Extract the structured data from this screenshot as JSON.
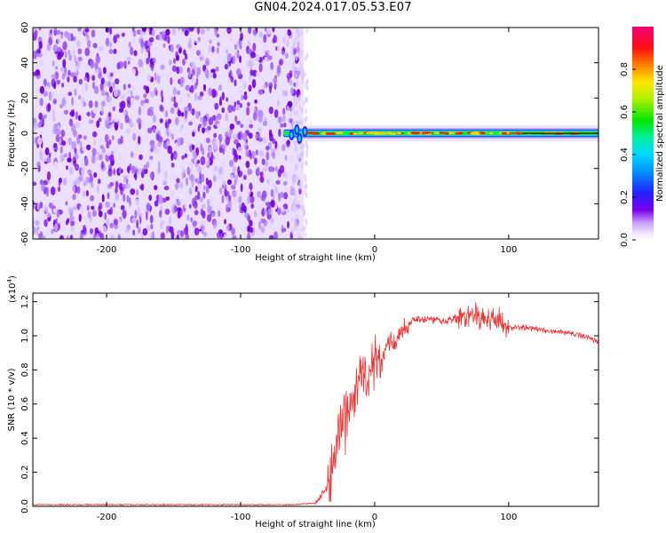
{
  "title": "GN04.2024.017.05.53.E07",
  "colors": {
    "snr_line": "#ee3333",
    "noise_purple": "#7a00e8",
    "axis": "#000000"
  },
  "chart_data": [
    {
      "type": "heatmap",
      "name": "spectrogram",
      "xlabel": "Height of straight line (km)",
      "ylabel": "Frequency (Hz)",
      "xlim": [
        -255,
        167
      ],
      "ylim": [
        -60,
        60
      ],
      "xticks": [
        -200,
        -100,
        0,
        100
      ],
      "xtick_labels": [
        "-200",
        "-100",
        "0",
        "100"
      ],
      "yticks": [
        -60,
        -40,
        -20,
        0,
        20,
        40,
        60
      ],
      "ytick_labels": [
        "-60",
        "-40",
        "-20",
        "0",
        "20",
        "40",
        "60"
      ],
      "noise_region_x": [
        -255,
        -53
      ],
      "signal_band": {
        "x_start": -68,
        "x_end": 167,
        "frequency_hz": 0
      },
      "colorbar": {
        "label": "Normalized spectral amplitude",
        "range": [
          0,
          1
        ],
        "ticks": [
          0.0,
          0.2,
          0.4,
          0.6,
          0.8
        ],
        "tick_labels": [
          "0.0",
          "0.2",
          "0.4",
          "0.6",
          "0.8"
        ],
        "colormap": "rainbow"
      }
    },
    {
      "type": "line",
      "name": "snr",
      "xlabel": "Height of straight line (km)",
      "ylabel": "SNR (10 * v/v)",
      "yscale_label": "(x10",
      "yscale_exp": "4",
      "yscale_close": ")",
      "xlim": [
        -255,
        167
      ],
      "ylim": [
        0,
        1.25
      ],
      "xticks": [
        -200,
        -100,
        0,
        100
      ],
      "xtick_labels": [
        "-200",
        "-100",
        "0",
        "100"
      ],
      "yticks": [
        0.0,
        0.2,
        0.4,
        0.6,
        0.8,
        1.0,
        1.2
      ],
      "ytick_labels": [
        "0.0",
        "0.2",
        "0.4",
        "0.6",
        "0.8",
        "1.0",
        "1.2"
      ],
      "series": [
        {
          "x": [
            -255,
            -200,
            -150,
            -100,
            -60,
            -45,
            -40,
            -35,
            -30,
            -25,
            -20,
            -15,
            -10,
            -5,
            0,
            5,
            10,
            15,
            20,
            25,
            30,
            40,
            50,
            60,
            70,
            80,
            90,
            95,
            100,
            110,
            120,
            130,
            140,
            150,
            160,
            167
          ],
          "y": [
            0.01,
            0.01,
            0.01,
            0.01,
            0.01,
            0.02,
            0.06,
            0.12,
            0.26,
            0.45,
            0.55,
            0.65,
            0.78,
            0.72,
            0.88,
            0.82,
            0.97,
            0.95,
            1.02,
            1.07,
            1.1,
            1.1,
            1.09,
            1.1,
            1.12,
            1.1,
            1.1,
            1.06,
            1.05,
            1.05,
            1.04,
            1.03,
            1.02,
            1.01,
            0.99,
            0.97
          ]
        }
      ]
    }
  ]
}
